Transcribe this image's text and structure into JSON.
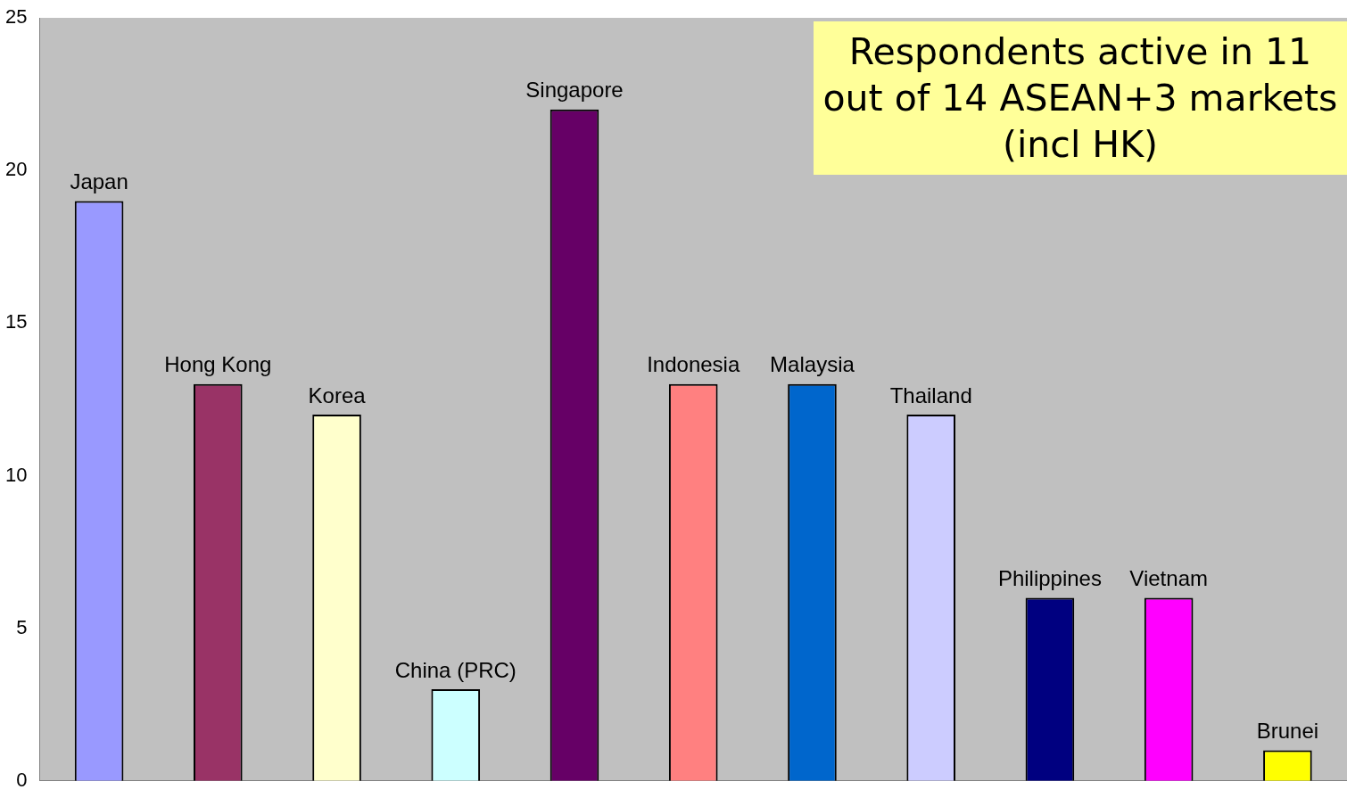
{
  "chart_data": {
    "type": "bar",
    "categories": [
      "Japan",
      "Hong Kong",
      "Korea",
      "China (PRC)",
      "Singapore",
      "Indonesia",
      "Malaysia",
      "Thailand",
      "Philippines",
      "Vietnam",
      "Brunei"
    ],
    "values": [
      19,
      13,
      12,
      3,
      22,
      13,
      13,
      12,
      6,
      6,
      1
    ],
    "colors": [
      "#9999ff",
      "#993366",
      "#ffffcc",
      "#ccffff",
      "#660066",
      "#ff8080",
      "#0066cc",
      "#ccccff",
      "#000080",
      "#ff00ff",
      "#ffff00"
    ],
    "ylim": [
      0,
      25
    ],
    "yticks": [
      0,
      5,
      10,
      15,
      20,
      25
    ],
    "grid": false,
    "legend": false,
    "annotations": [
      "Respondents active in 11 out of 14 ASEAN+3 markets (incl HK)"
    ]
  }
}
